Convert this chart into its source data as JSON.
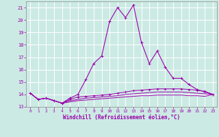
{
  "xlabel": "Windchill (Refroidissement éolien,°C)",
  "background_color": "#cceae4",
  "grid_color": "#ffffff",
  "line_color": "#9900aa",
  "x_hours": [
    0,
    1,
    2,
    3,
    4,
    5,
    6,
    7,
    8,
    9,
    10,
    11,
    12,
    13,
    14,
    15,
    16,
    17,
    18,
    19,
    20,
    21,
    22,
    23
  ],
  "ylim": [
    13.0,
    21.5
  ],
  "xlim": [
    -0.5,
    23.5
  ],
  "yticks": [
    13,
    14,
    15,
    16,
    17,
    18,
    19,
    20,
    21
  ],
  "series": {
    "temp": [
      14.1,
      13.6,
      13.7,
      13.5,
      13.3,
      13.7,
      14.0,
      15.2,
      16.5,
      17.1,
      19.9,
      21.0,
      20.2,
      21.2,
      18.2,
      16.5,
      17.5,
      16.2,
      15.3,
      15.3,
      14.8,
      14.4,
      14.2,
      14.0
    ],
    "windchill": [
      14.1,
      13.6,
      13.7,
      13.5,
      13.3,
      13.6,
      13.8,
      13.85,
      13.9,
      13.95,
      14.0,
      14.1,
      14.2,
      14.3,
      14.35,
      14.4,
      14.45,
      14.45,
      14.45,
      14.45,
      14.4,
      14.35,
      14.25,
      14.0
    ],
    "apparent1": [
      14.1,
      13.6,
      13.7,
      13.5,
      13.3,
      13.5,
      13.6,
      13.7,
      13.75,
      13.8,
      13.85,
      13.9,
      14.0,
      14.05,
      14.1,
      14.15,
      14.2,
      14.2,
      14.2,
      14.2,
      14.15,
      14.1,
      14.05,
      14.0
    ],
    "apparent2": [
      14.1,
      13.6,
      13.7,
      13.5,
      13.3,
      13.4,
      13.5,
      13.55,
      13.6,
      13.65,
      13.7,
      13.75,
      13.8,
      13.85,
      13.9,
      13.9,
      13.95,
      13.95,
      13.95,
      13.95,
      13.9,
      13.9,
      13.85,
      14.0
    ]
  }
}
